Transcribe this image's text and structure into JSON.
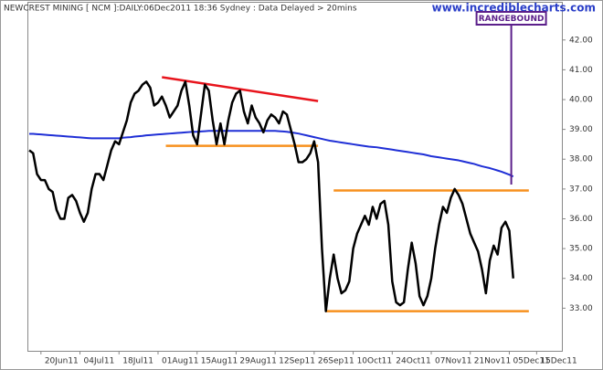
{
  "chart_data": {
    "type": "line",
    "title": "NEWCREST MINING [ NCM ]:DAILY:06Dec2011 18:36 Sydney : Data Delayed > 20mins",
    "watermark": "www.incrediblecharts.com",
    "categories": [
      null,
      null,
      null,
      "20Jun11",
      null,
      null,
      null,
      null,
      null,
      null,
      null,
      null,
      null,
      "04Jul11",
      null,
      null,
      null,
      null,
      null,
      null,
      null,
      null,
      null,
      "18Jul11",
      null,
      null,
      null,
      null,
      null,
      null,
      null,
      null,
      null,
      "01Aug11",
      null,
      null,
      null,
      null,
      null,
      null,
      null,
      null,
      null,
      "15Aug11",
      null,
      null,
      null,
      null,
      null,
      null,
      null,
      null,
      null,
      "29Aug11",
      null,
      null,
      null,
      null,
      null,
      null,
      null,
      null,
      null,
      "12Sep11",
      null,
      null,
      null,
      null,
      null,
      null,
      null,
      null,
      null,
      "26Sep11",
      null,
      null,
      null,
      null,
      null,
      null,
      null,
      null,
      null,
      "10Oct11",
      null,
      null,
      null,
      null,
      null,
      null,
      null,
      null,
      null,
      "24Oct11",
      null,
      null,
      null,
      null,
      null,
      null,
      null,
      null,
      null,
      "07Nov11",
      null,
      null,
      null,
      null,
      null,
      null,
      null,
      null,
      null,
      "21Nov11",
      null,
      null,
      null,
      null,
      null,
      null,
      null,
      null,
      null,
      "05Dec11",
      null,
      null,
      null,
      null,
      null,
      null,
      "15Dec11",
      null,
      null,
      null,
      null,
      null,
      null
    ],
    "series": [
      {
        "color": "#000000",
        "width": 2.5,
        "values": [
          38.3,
          38.2,
          37.5,
          37.3,
          37.3,
          37.0,
          36.9,
          36.3,
          36.0,
          36.0,
          36.7,
          36.8,
          36.6,
          36.2,
          35.9,
          36.2,
          37.0,
          37.5,
          37.5,
          37.3,
          37.8,
          38.3,
          38.6,
          38.5,
          38.9,
          39.3,
          39.9,
          40.2,
          40.3,
          40.5,
          40.6,
          40.4,
          39.8,
          39.9,
          40.1,
          39.8,
          39.4,
          39.6,
          39.8,
          40.3,
          40.6,
          39.8,
          38.8,
          38.5,
          39.5,
          40.5,
          40.3,
          39.3,
          38.5,
          39.2,
          38.5,
          39.3,
          39.9,
          40.2,
          40.3,
          39.6,
          39.2,
          39.8,
          39.4,
          39.2,
          38.9,
          39.3,
          39.5,
          39.4,
          39.2,
          39.6,
          39.5,
          39.0,
          38.5,
          37.9,
          37.9,
          38.0,
          38.2,
          38.6,
          37.9,
          35.0,
          32.9,
          34.0,
          34.8,
          34.0,
          33.5,
          33.6,
          33.9,
          35.0,
          35.5,
          35.8,
          36.1,
          35.8,
          36.4,
          36.0,
          36.5,
          36.6,
          35.8,
          33.9,
          33.2,
          33.1,
          33.2,
          34.3,
          35.2,
          34.5,
          33.4,
          33.1,
          33.4,
          34.0,
          35.0,
          35.8,
          36.4,
          36.2,
          36.7,
          37.0,
          36.8,
          36.5,
          36.0,
          35.5,
          35.2,
          34.9,
          34.3,
          33.5,
          34.6,
          35.1,
          34.8,
          35.7,
          35.9,
          35.6,
          34.0,
          null,
          null,
          null,
          null,
          null,
          null,
          null,
          null,
          null,
          null,
          null,
          null
        ]
      },
      {
        "color": "#1f2fd6",
        "width": 2,
        "values": [
          38.85,
          38.85,
          38.84,
          38.83,
          38.82,
          38.81,
          38.8,
          38.79,
          38.78,
          38.77,
          38.76,
          38.75,
          38.74,
          38.73,
          38.72,
          38.71,
          38.7,
          38.7,
          38.7,
          38.7,
          38.7,
          38.7,
          38.7,
          38.7,
          38.72,
          38.73,
          38.74,
          38.76,
          38.77,
          38.78,
          38.8,
          38.81,
          38.82,
          38.83,
          38.84,
          38.85,
          38.86,
          38.87,
          38.88,
          38.89,
          38.9,
          38.91,
          38.92,
          38.92,
          38.93,
          38.94,
          38.95,
          38.95,
          38.95,
          38.95,
          38.95,
          38.95,
          38.95,
          38.95,
          38.95,
          38.95,
          38.95,
          38.95,
          38.95,
          38.95,
          38.95,
          38.95,
          38.95,
          38.95,
          38.94,
          38.93,
          38.92,
          38.9,
          38.88,
          38.86,
          38.83,
          38.8,
          38.77,
          38.74,
          38.71,
          38.68,
          38.65,
          38.62,
          38.6,
          38.58,
          38.56,
          38.54,
          38.52,
          38.5,
          38.48,
          38.46,
          38.44,
          38.42,
          38.41,
          38.4,
          38.38,
          38.36,
          38.34,
          38.32,
          38.3,
          38.28,
          38.26,
          38.24,
          38.22,
          38.2,
          38.18,
          38.16,
          38.13,
          38.1,
          38.08,
          38.06,
          38.04,
          38.02,
          38.0,
          37.98,
          37.96,
          37.93,
          37.9,
          37.87,
          37.84,
          37.8,
          37.76,
          37.73,
          37.7,
          37.66,
          37.62,
          37.58,
          37.53,
          37.48,
          37.42,
          null,
          null,
          null,
          null,
          null,
          null,
          null,
          null,
          null,
          null,
          null,
          null
        ]
      }
    ],
    "lines": [
      {
        "color": "#e8141c",
        "x": [
          34,
          74
        ],
        "y": [
          40.75,
          39.95
        ]
      },
      {
        "color": "#f7901e",
        "x": [
          35,
          74
        ],
        "y": [
          38.45,
          38.45
        ]
      },
      {
        "color": "#f7901e",
        "x": [
          78,
          128
        ],
        "y": [
          36.95,
          36.95
        ]
      },
      {
        "color": "#f7901e",
        "x": [
          76,
          128
        ],
        "y": [
          32.9,
          32.9
        ]
      }
    ],
    "annotation": {
      "text": "RANGEBOUND",
      "x": 123.5,
      "y": 37.15,
      "color": "#5b1f8a"
    },
    "ylim": [
      31.57,
      43.28
    ],
    "yticks": [
      {
        "value": 33,
        "label": "33.00"
      },
      {
        "value": 34,
        "label": "34.00"
      },
      {
        "value": 35,
        "label": "35.00"
      },
      {
        "value": 36,
        "label": "36.00"
      },
      {
        "value": 37,
        "label": "37.00"
      },
      {
        "value": 38,
        "label": "38.00"
      },
      {
        "value": 39,
        "label": "39.00"
      },
      {
        "value": 40,
        "label": "40.00"
      },
      {
        "value": 41,
        "label": "41.00"
      },
      {
        "value": 42,
        "label": "42.00"
      }
    ]
  }
}
